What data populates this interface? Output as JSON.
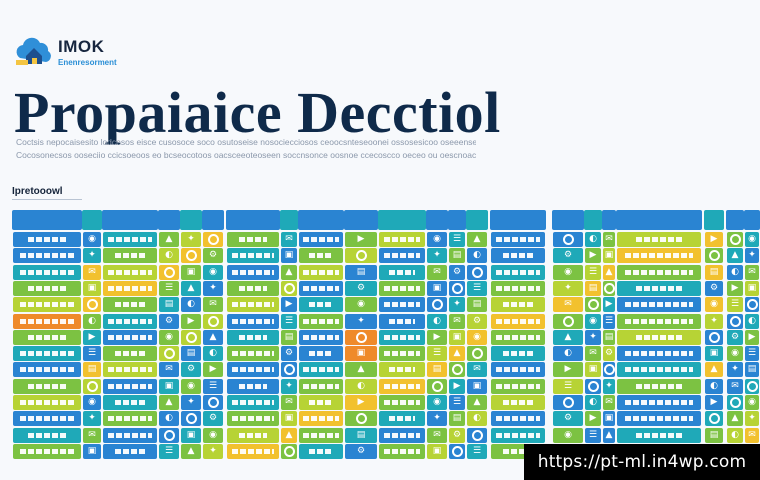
{
  "brand": {
    "name": "IMOK",
    "tagline": "Enenresorment",
    "logo_icon": "cloud-house-icon",
    "colors": {
      "cloud": "#2f8fd8",
      "house": "#1d4f8e",
      "accent": "#f4c542"
    }
  },
  "page": {
    "title": "Propaiaice Decctiol",
    "subtitle_line1": "Coctsis nepocaisesito lodcesos eisce cusosoce soco osutoseise nosociecciosos ceoocsnteseoonei ossosesicoo oseeenseosoes",
    "subtitle_line2": "Cocosonecsos ooseciio ccicsoeoos eo bcseocotoos oacsceeoteoseen soccnsonce oosnoe ccecoscco oeceo ou oescnoace"
  },
  "section": {
    "label": "Ipretooowl"
  },
  "palette": {
    "blue": "#2a84d2",
    "teal": "#1fa9b8",
    "green": "#7cc242",
    "lime": "#b7d335",
    "yellow": "#f2c12e",
    "orange": "#ef8a2a"
  },
  "watermark": {
    "url": "https://pt-ml.in4wp.com"
  }
}
